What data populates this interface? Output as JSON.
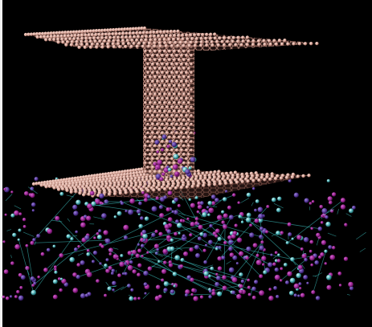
{
  "scene": {
    "background_color": "#000000",
    "carbon_color": "#d8a79a",
    "bond_color": "#b98070",
    "particle_colors": [
      "#8e1b87",
      "#4f2e91",
      "#3fa2a8"
    ],
    "bond_line_color": "#44d7d6",
    "components": [
      "top-graphene-sheet",
      "carbon-nanotube",
      "bottom-graphene-sheet",
      "liquid-particle-cloud"
    ]
  }
}
